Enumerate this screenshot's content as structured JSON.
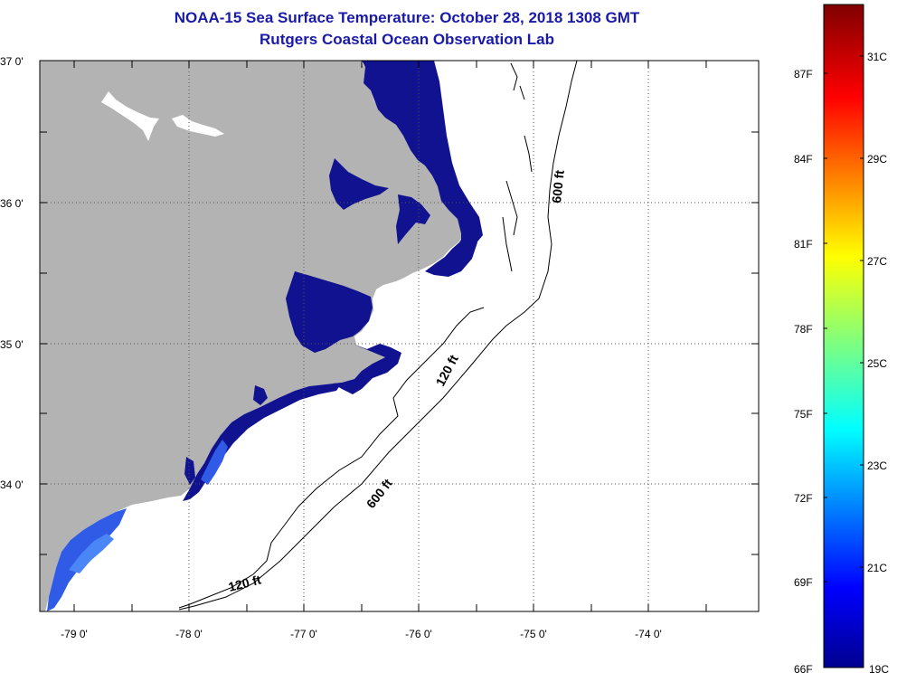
{
  "header": {
    "title": "NOAA-15 Sea Surface Temperature:  October 28, 2018 1308 GMT",
    "subtitle": "Rutgers Coastal Ocean Observation Lab"
  },
  "map": {
    "lat_labels": [
      "37 0'",
      "36 0'",
      "35 0'",
      "34 0'"
    ],
    "lon_labels": [
      "-79 0'",
      "-78 0'",
      "-77 0'",
      "-76 0'",
      "-75 0'",
      "-74 0'"
    ],
    "lat_range": [
      33.1,
      37.0
    ],
    "lon_range": [
      -79.3,
      -73.0
    ],
    "contours": [
      {
        "label": "600 ft"
      },
      {
        "label": "120 ft"
      },
      {
        "label": "600 ft"
      },
      {
        "label": "120 ft"
      }
    ],
    "colors": {
      "land": "#b3b3b3",
      "water_cold": "#10128f",
      "water_warm": "#3b6ff0",
      "lake": "#ffffff"
    }
  },
  "colorbar": {
    "fahrenheit_labels": [
      "87F",
      "84F",
      "81F",
      "78F",
      "75F",
      "72F",
      "69F",
      "66F"
    ],
    "celsius_labels": [
      "31C",
      "29C",
      "27C",
      "25C",
      "23C",
      "21C",
      "19C"
    ],
    "range_c": [
      19,
      32
    ]
  }
}
